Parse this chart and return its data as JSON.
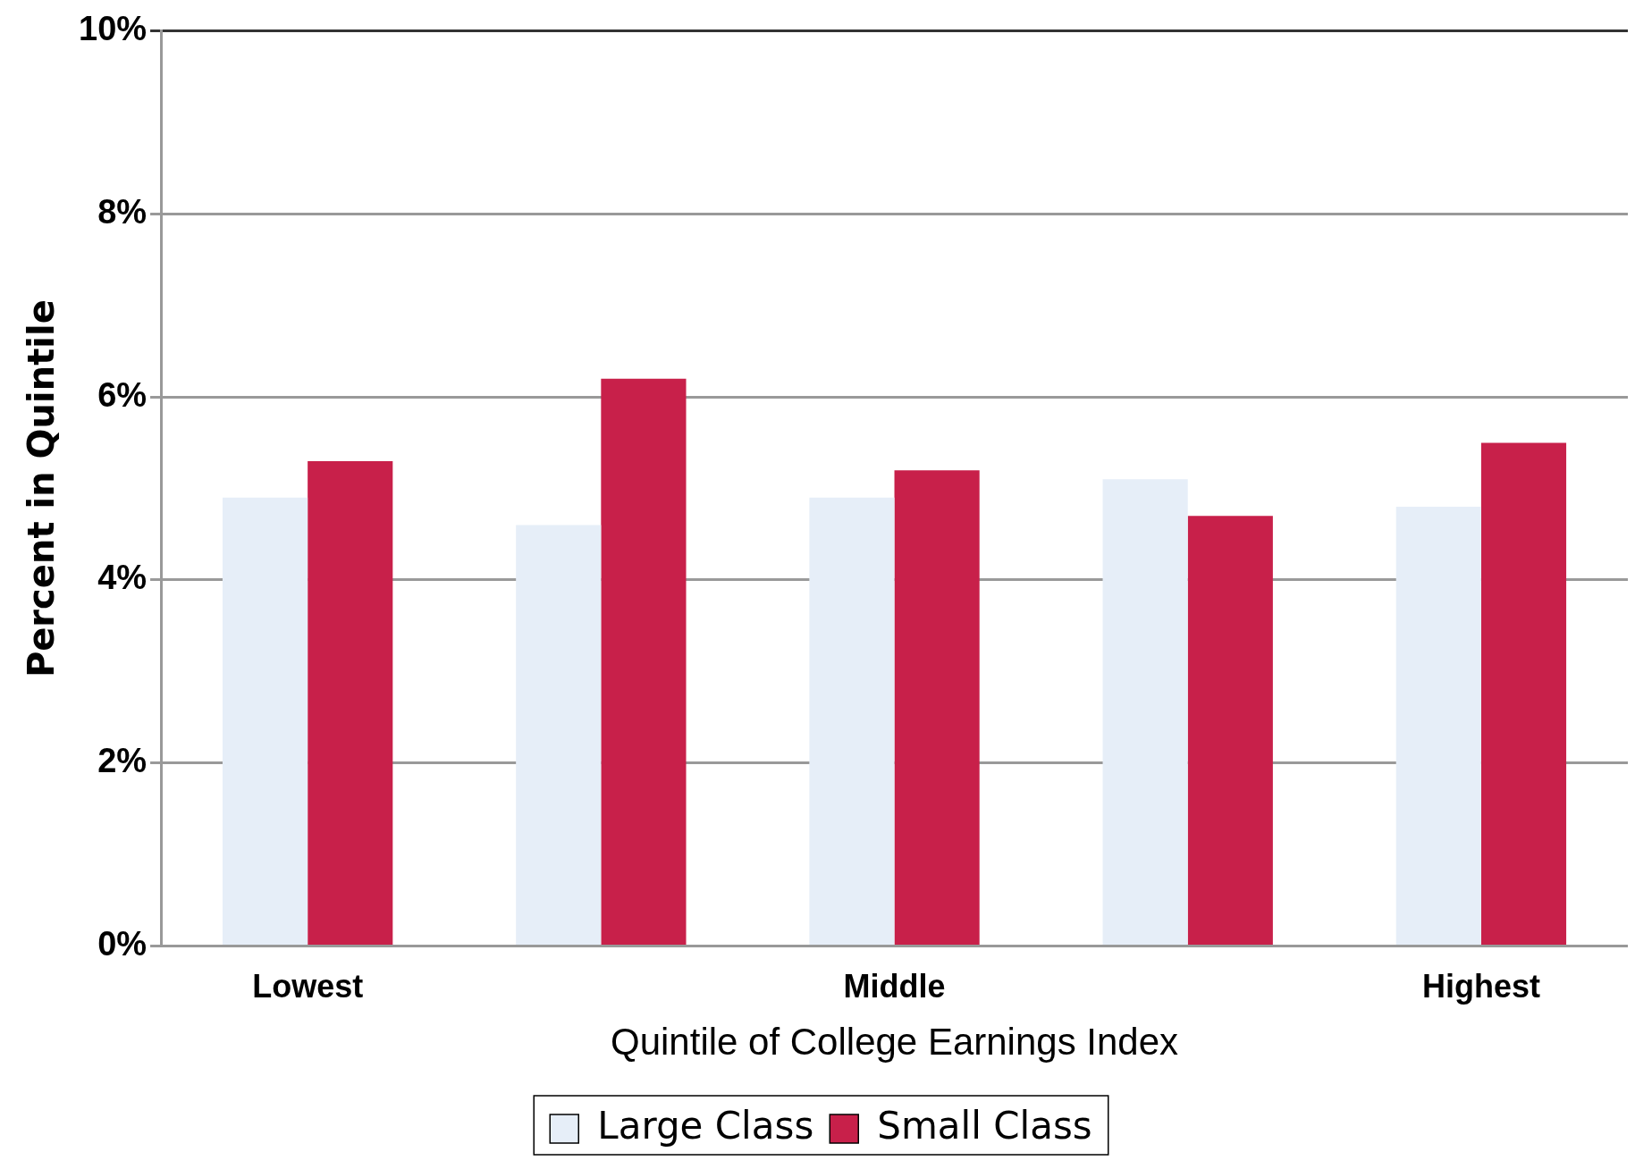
{
  "chart_data": {
    "type": "bar",
    "xlabel": "Quintile of College Earnings Index",
    "ylabel": "Percent in Quintile",
    "categories": [
      "Lowest",
      null,
      "Middle",
      null,
      "Highest"
    ],
    "series": [
      {
        "name": "Large Class",
        "color": "#e6eef8",
        "values": [
          4.9,
          4.6,
          4.9,
          5.1,
          4.8
        ]
      },
      {
        "name": "Small Class",
        "color": "#c8204a",
        "values": [
          5.3,
          6.2,
          5.2,
          4.7,
          5.5
        ]
      }
    ],
    "ylim": [
      0,
      10
    ],
    "yticks": [
      {
        "value": 0,
        "label": "0%"
      },
      {
        "value": 2,
        "label": "2%"
      },
      {
        "value": 4,
        "label": "4%"
      },
      {
        "value": 6,
        "label": "6%"
      },
      {
        "value": 8,
        "label": "8%"
      },
      {
        "value": 10,
        "label": "10%"
      }
    ],
    "grid": "y",
    "legend": "bottom"
  }
}
